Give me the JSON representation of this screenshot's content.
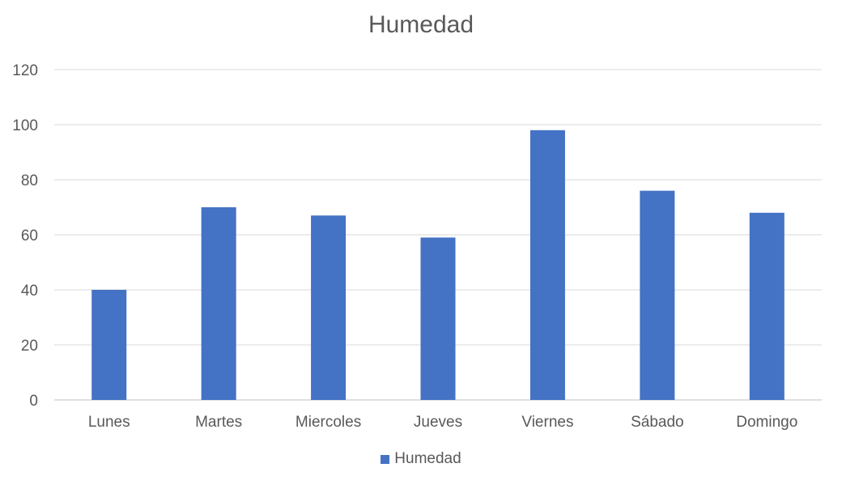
{
  "chart_data": {
    "type": "bar",
    "title": "Humedad",
    "xlabel": "",
    "ylabel": "",
    "categories": [
      "Lunes",
      "Martes",
      "Miercoles",
      "Jueves",
      "Viernes",
      "Sábado",
      "Domingo"
    ],
    "series": [
      {
        "name": "Humedad",
        "values": [
          40,
          70,
          67,
          59,
          98,
          76,
          68
        ],
        "color": "#4472C4"
      }
    ],
    "ylim": [
      0,
      120
    ],
    "yticks": [
      "0",
      "20",
      "40",
      "60",
      "80",
      "100",
      "120"
    ],
    "grid": true,
    "legend_position": "bottom"
  }
}
